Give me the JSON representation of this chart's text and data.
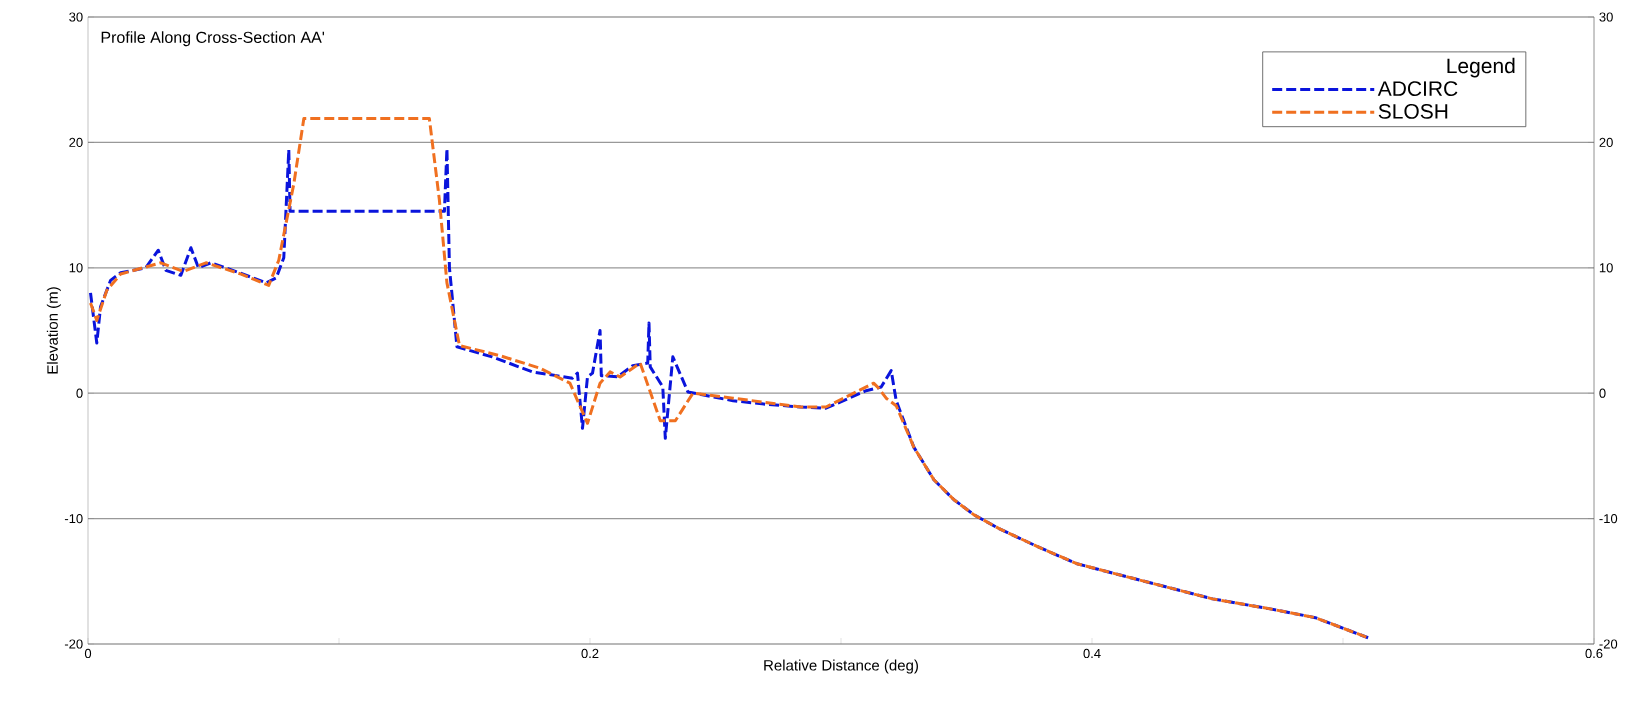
{
  "chart_data": {
    "type": "line",
    "title": "Profile Along Cross-Section AA'",
    "xlabel": "Relative Distance (deg)",
    "ylabel": "Elevation (m)",
    "xlim": [
      0,
      0.6
    ],
    "xticks": [
      0,
      {
        "value": 0.1,
        "label": null
      },
      0.2,
      {
        "value": 0.3,
        "label": null
      },
      0.4,
      {
        "value": 0.5,
        "label": null
      },
      0.6
    ],
    "ylim": [
      -20,
      30
    ],
    "yticks": [
      -20,
      -10,
      0,
      10,
      20,
      30
    ],
    "y2lim": [
      -20,
      30
    ],
    "y2ticks": [
      -20,
      -10,
      0,
      10,
      20,
      30
    ],
    "grid": "y",
    "legend": "top right",
    "legend_title": "Legend",
    "line_style": "dashed",
    "marker": "none",
    "series": [
      {
        "name": "ADCIRC",
        "color": "#0a14dc",
        "x": [
          0.001,
          0.0035,
          0.005,
          0.009,
          0.013,
          0.023,
          0.028,
          0.031,
          0.037,
          0.041,
          0.044,
          0.049,
          0.059,
          0.071,
          0.075,
          0.078,
          0.08,
          0.0805,
          0.142,
          0.143,
          0.144,
          0.147,
          0.161,
          0.177,
          0.193,
          0.195,
          0.197,
          0.199,
          0.201,
          0.204,
          0.2045,
          0.211,
          0.217,
          0.223,
          0.2235,
          0.224,
          0.229,
          0.23,
          0.233,
          0.239,
          0.257,
          0.271,
          0.284,
          0.294,
          0.31,
          0.316,
          0.32,
          0.322,
          0.329,
          0.337,
          0.345,
          0.353,
          0.363,
          0.379,
          0.394,
          0.417,
          0.448,
          0.471,
          0.489,
          0.51
        ],
        "values": [
          8.0,
          4.0,
          6.9,
          9.0,
          9.6,
          10.0,
          11.4,
          9.8,
          9.4,
          11.6,
          10.0,
          10.4,
          9.7,
          8.8,
          9.2,
          10.8,
          19.4,
          14.5,
          14.5,
          19.5,
          10.0,
          3.7,
          2.9,
          1.7,
          1.2,
          1.6,
          -2.8,
          1.3,
          1.6,
          5.0,
          1.4,
          1.3,
          2.2,
          2.4,
          5.6,
          2.1,
          0.5,
          -3.6,
          2.9,
          0.1,
          -0.6,
          -0.9,
          -1.1,
          -1.2,
          0.2,
          0.5,
          1.8,
          -0.6,
          -4.3,
          -6.9,
          -8.5,
          -9.7,
          -10.8,
          -12.3,
          -13.6,
          -14.8,
          -16.4,
          -17.2,
          -17.9,
          -19.5
        ]
      },
      {
        "name": "SLOSH",
        "color": "#f07020",
        "x": [
          0.001,
          0.0035,
          0.0075,
          0.013,
          0.029,
          0.038,
          0.047,
          0.061,
          0.072,
          0.076,
          0.082,
          0.086,
          0.136,
          0.14,
          0.143,
          0.147,
          0.148,
          0.164,
          0.18,
          0.192,
          0.199,
          0.204,
          0.208,
          0.212,
          0.22,
          0.228,
          0.234,
          0.241,
          0.257,
          0.284,
          0.294,
          0.313,
          0.315,
          0.318,
          0.322,
          0.329,
          0.337,
          0.345,
          0.353,
          0.363,
          0.379,
          0.394,
          0.417,
          0.448,
          0.471,
          0.489,
          0.51
        ],
        "values": [
          7.2,
          5.8,
          8.2,
          9.5,
          10.4,
          9.7,
          10.4,
          9.5,
          8.6,
          10.6,
          16.7,
          21.9,
          21.9,
          15.4,
          8.8,
          4.8,
          3.8,
          3.0,
          2.0,
          0.8,
          -2.4,
          0.8,
          1.7,
          1.3,
          2.4,
          -2.2,
          -2.2,
          0.0,
          -0.4,
          -1.1,
          -1.1,
          0.8,
          0.4,
          -0.4,
          -1.0,
          -4.3,
          -6.9,
          -8.5,
          -9.7,
          -10.8,
          -12.3,
          -13.6,
          -14.8,
          -16.4,
          -17.2,
          -17.9,
          -19.5
        ]
      }
    ]
  }
}
